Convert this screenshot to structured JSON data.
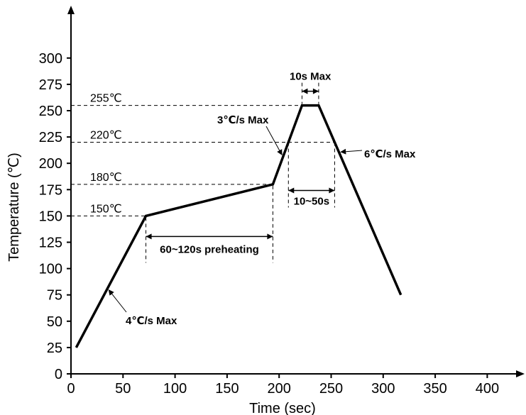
{
  "chart_data": {
    "type": "line",
    "title": "",
    "xlabel": "Time (sec)",
    "ylabel": "Temperature (℃)",
    "xlim": [
      0,
      430
    ],
    "ylim": [
      0,
      320
    ],
    "grid": false,
    "legend": "none",
    "xticks": [
      0,
      50,
      100,
      150,
      200,
      250,
      300,
      350,
      400
    ],
    "yticks": [
      0,
      25,
      50,
      75,
      100,
      125,
      150,
      175,
      200,
      225,
      250,
      275,
      300
    ],
    "series": [
      {
        "x": [
          5,
          72,
          194,
          222,
          238,
          317
        ],
        "y": [
          25,
          150,
          180,
          255,
          255,
          75
        ]
      }
    ],
    "reference_lines": [
      {
        "label": "255℃",
        "y": 255
      },
      {
        "label": "220℃",
        "y": 220
      },
      {
        "label": "180℃",
        "y": 180
      },
      {
        "label": "150℃",
        "y": 150
      }
    ],
    "annotations": {
      "ramp_up": "4℃/s Max",
      "ramp_to_peak": "3℃/s Max",
      "ramp_down": "6℃/s Max",
      "preheat": "60~120s preheating",
      "time_above_220": "10~50s",
      "peak_time": "10s Max"
    },
    "color": "#000000"
  }
}
